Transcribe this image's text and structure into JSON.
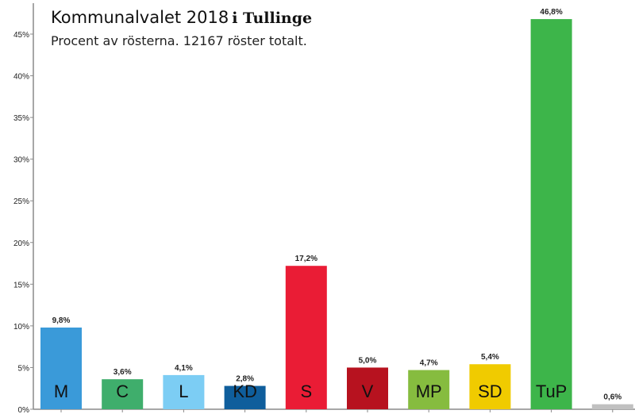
{
  "chart_data": {
    "type": "bar",
    "title_part1": "Kommunalvalet 2018",
    "title_part2": "i Tullinge",
    "subtitle": "Procent av rösterna. 12167 röster totalt.",
    "ylim": [
      0,
      48
    ],
    "yticks": [
      0,
      5,
      10,
      15,
      20,
      25,
      30,
      35,
      40,
      45
    ],
    "ytick_labels": [
      "0%",
      "5%",
      "10%",
      "15%",
      "20%",
      "25%",
      "30%",
      "35%",
      "40%",
      "45%"
    ],
    "grid": false,
    "categories": [
      "M",
      "C",
      "L",
      "KD",
      "S",
      "V",
      "MP",
      "SD",
      "TuP",
      ""
    ],
    "values": [
      9.8,
      3.6,
      4.1,
      2.8,
      17.2,
      5.0,
      4.7,
      5.4,
      46.8,
      0.6
    ],
    "value_labels": [
      "9,8%",
      "3,6%",
      "4,1%",
      "2,8%",
      "17,2%",
      "5,0%",
      "4,7%",
      "5,4%",
      "46,8%",
      "0,6%"
    ],
    "colors": [
      "#3a9ad9",
      "#3fae6c",
      "#7ccdf4",
      "#0f5e9c",
      "#ea1c35",
      "#b7121f",
      "#86bc3f",
      "#f0cb00",
      "#3db54a",
      "#c0c0c0"
    ]
  }
}
